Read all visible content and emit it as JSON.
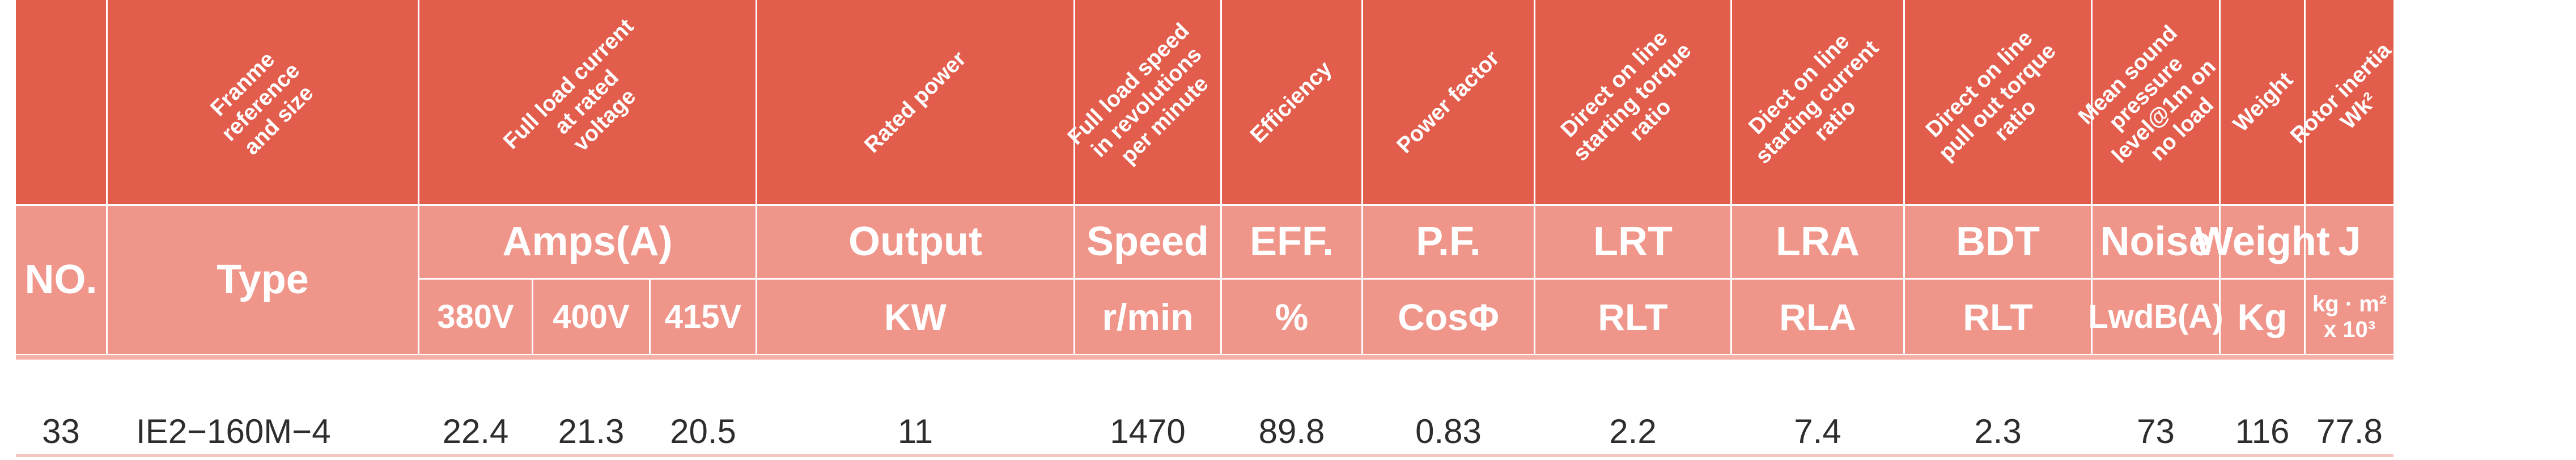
{
  "header": {
    "diagonal": [
      "Franme\nreference\nand size",
      "Full load current\nat rated\nvoltage",
      "Rated power",
      "Full load speed\nin revolutions\nper minute",
      "Efficiency",
      "Power factor",
      "Direct on line\nstarting torque\nratio",
      "Diect on line\nstarting current\nratio",
      "Direct on line\npull out torque\nratio",
      "Mean sound\npressure\nlevel@1m on\nno load",
      "Weight",
      "Rotor inertia\nWk²"
    ],
    "no": "NO.",
    "type": "Type",
    "amps": "Amps(A)",
    "v380": "380V",
    "v400": "400V",
    "v415": "415V",
    "output": "Output",
    "kw": "KW",
    "speed": "Speed",
    "rmin": "r/min",
    "eff": "EFF.",
    "pct": "%",
    "pf": "P.F.",
    "cos": "CosΦ",
    "lrt": "LRT",
    "rlt1": "RLT",
    "lra": "LRA",
    "rla": "RLA",
    "bdt": "BDT",
    "rlt2": "RLT",
    "noise": "Noise",
    "lwdb": "LwdB(A)",
    "weight": "Weight",
    "kg": "Kg",
    "j": "J",
    "junit": "kg · m² x 10³"
  },
  "row": {
    "no": "33",
    "type": "IE2−160M−4",
    "a380": "22.4",
    "a400": "21.3",
    "a415": "20.5",
    "kw": "11",
    "speed": "1470",
    "eff": "89.8",
    "pf": "0.83",
    "lrt": "2.2",
    "lra": "7.4",
    "bdt": "2.3",
    "noise": "73",
    "weight": "116",
    "j": "77.8"
  }
}
